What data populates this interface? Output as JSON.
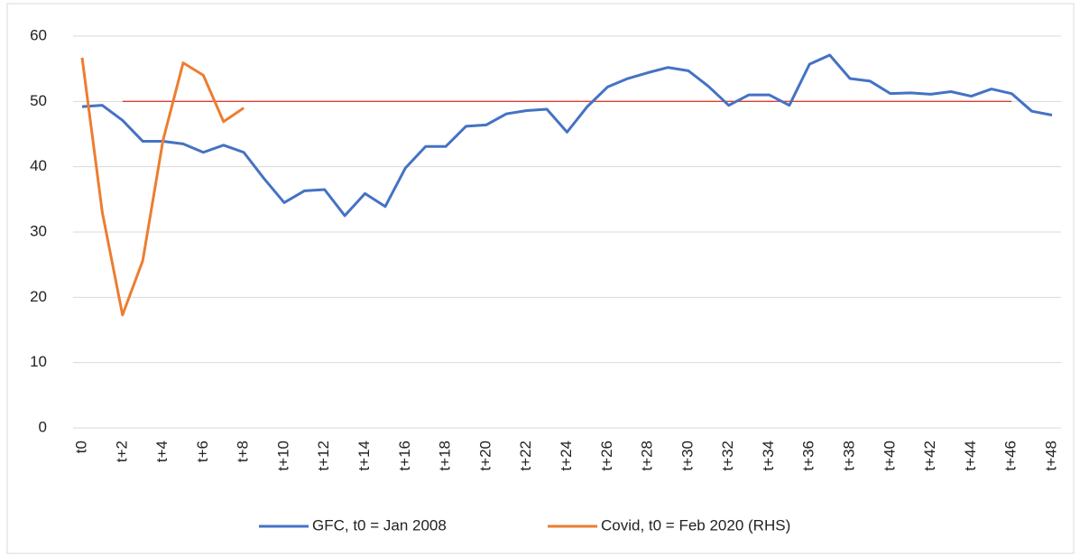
{
  "chart_data": {
    "type": "line",
    "categories": [
      "t0",
      null,
      "t+2",
      null,
      "t+4",
      null,
      "t+6",
      null,
      "t+8",
      null,
      "t+10",
      null,
      "t+12",
      null,
      "t+14",
      null,
      "t+16",
      null,
      "t+18",
      null,
      "t+20",
      null,
      "t+22",
      null,
      "t+24",
      null,
      "t+26",
      null,
      "t+28",
      null,
      "t+30",
      null,
      "t+32",
      null,
      "t+34",
      null,
      "t+36",
      null,
      "t+38",
      null,
      "t+40",
      null,
      "t+42",
      null,
      "t+44",
      null,
      "t+46",
      null,
      "t+48"
    ],
    "series": [
      {
        "name": "GFC, t0 = Jan 2008",
        "color": "#4472c4",
        "values": [
          49.2,
          49.4,
          47.1,
          43.9,
          43.9,
          43.5,
          42.2,
          43.3,
          42.2,
          38.2,
          34.5,
          36.3,
          36.5,
          32.5,
          35.9,
          33.9,
          39.8,
          43.1,
          43.1,
          46.2,
          46.4,
          48.1,
          48.6,
          48.8,
          45.3,
          49.2,
          52.2,
          53.5,
          54.4,
          55.2,
          54.7,
          52.3,
          49.4,
          51.0,
          51.0,
          49.4,
          55.7,
          57.1,
          53.5,
          53.1,
          51.2,
          51.3,
          51.1,
          51.5,
          50.8,
          51.9,
          51.2,
          48.5,
          47.9
        ]
      },
      {
        "name": "Covid, t0 = Feb 2020 (RHS)",
        "color": "#ed7d31",
        "values": [
          56.7,
          33.0,
          17.3,
          25.6,
          44.0,
          55.9,
          54.0,
          46.9,
          49.0,
          null,
          null,
          null,
          null,
          null,
          null,
          null,
          null,
          null,
          null,
          null,
          null,
          null,
          null,
          null,
          null,
          null,
          null,
          null,
          null,
          null,
          null,
          null,
          null,
          null,
          null,
          null,
          null,
          null,
          null,
          null,
          null,
          null,
          null,
          null,
          null,
          null,
          null,
          null,
          null
        ]
      }
    ],
    "reference_line": {
      "value": 50,
      "color": "#e03c31",
      "from": "t+2",
      "to": "t+46"
    },
    "ylim": [
      0,
      60
    ],
    "yticks": [
      0,
      10,
      20,
      30,
      40,
      50,
      60
    ],
    "grid": true,
    "legend": "bottom"
  }
}
